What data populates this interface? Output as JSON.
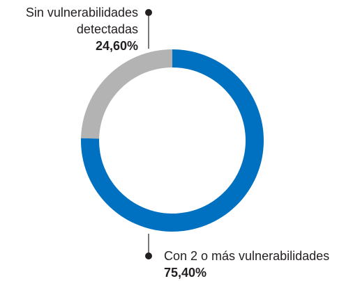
{
  "chart_data": {
    "type": "donut",
    "categories": [
      "Con 2 o más vulnerabilidades",
      "Sin vulnerabilidades detectadas"
    ],
    "values": [
      75.4,
      24.6
    ],
    "value_labels": [
      "75,40%",
      "24,60%"
    ],
    "colors": [
      "#0070c0",
      "#b3b3b3"
    ]
  }
}
